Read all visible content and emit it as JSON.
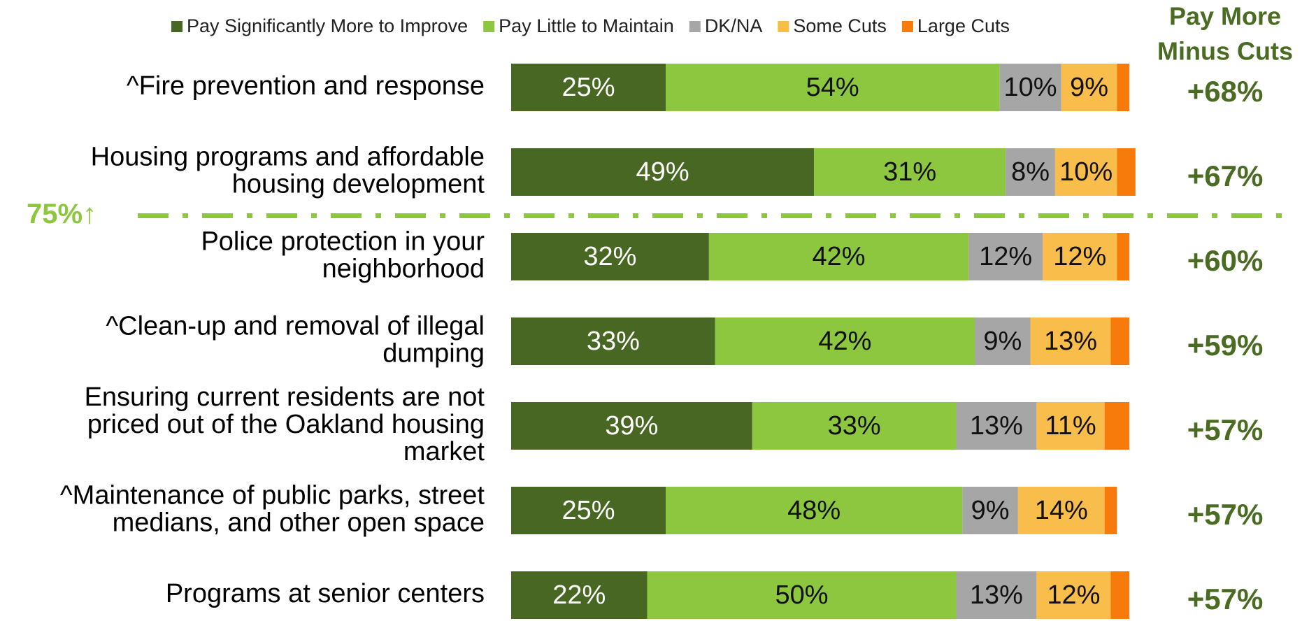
{
  "chart_data": {
    "type": "stacked_bar_horizontal",
    "categories": [
      [
        "^Fire prevention and response"
      ],
      [
        "Housing programs and affordable",
        "housing development"
      ],
      [
        "Police protection in your",
        "neighborhood"
      ],
      [
        "^Clean-up and removal of illegal",
        "dumping"
      ],
      [
        "Ensuring current residents are not",
        "priced out of the Oakland housing",
        "market"
      ],
      [
        "^Maintenance of public parks, street",
        "medians, and other open space"
      ],
      [
        "Programs at senior centers"
      ]
    ],
    "xlim": [
      0,
      100
    ],
    "series": [
      {
        "name": "Pay Significantly More to Improve",
        "color": "#476723",
        "values": [
          25,
          49,
          32,
          33,
          39,
          25,
          22
        ],
        "value_labels": [
          "25%",
          "49%",
          "32%",
          "33%",
          "39%",
          "25%",
          "22%"
        ]
      },
      {
        "name": "Pay Little to Maintain",
        "color": "#8dc63f",
        "values": [
          54,
          31,
          42,
          42,
          33,
          48,
          50
        ],
        "value_labels": [
          "54%",
          "31%",
          "42%",
          "42%",
          "33%",
          "48%",
          "50%"
        ]
      },
      {
        "name": "DK/NA",
        "color": "#a6a6a6",
        "values": [
          10,
          8,
          12,
          9,
          13,
          9,
          13
        ],
        "value_labels": [
          "10%",
          "8%",
          "12%",
          "9%",
          "13%",
          "9%",
          "13%"
        ]
      },
      {
        "name": "Some Cuts",
        "color": "#f9bd4c",
        "values": [
          9,
          10,
          12,
          13,
          11,
          14,
          12
        ],
        "value_labels": [
          "9%",
          "10%",
          "12%",
          "13%",
          "11%",
          "14%",
          "12%"
        ]
      },
      {
        "name": "Large Cuts",
        "color": "#f77b0b",
        "values": [
          2,
          3,
          2,
          3,
          4,
          2,
          3
        ],
        "value_labels": [
          null,
          null,
          null,
          null,
          null,
          null,
          null
        ]
      }
    ],
    "net": {
      "title": [
        "Pay More",
        "Minus Cuts"
      ],
      "color": "#4a6b22",
      "values": [
        68,
        67,
        60,
        59,
        57,
        57,
        57
      ],
      "value_labels": [
        "+68%",
        "+67%",
        "+60%",
        "+59%",
        "+57%",
        "+57%",
        "+57%"
      ]
    },
    "threshold": {
      "label": "75%↑",
      "color": "#8dc63f"
    }
  }
}
